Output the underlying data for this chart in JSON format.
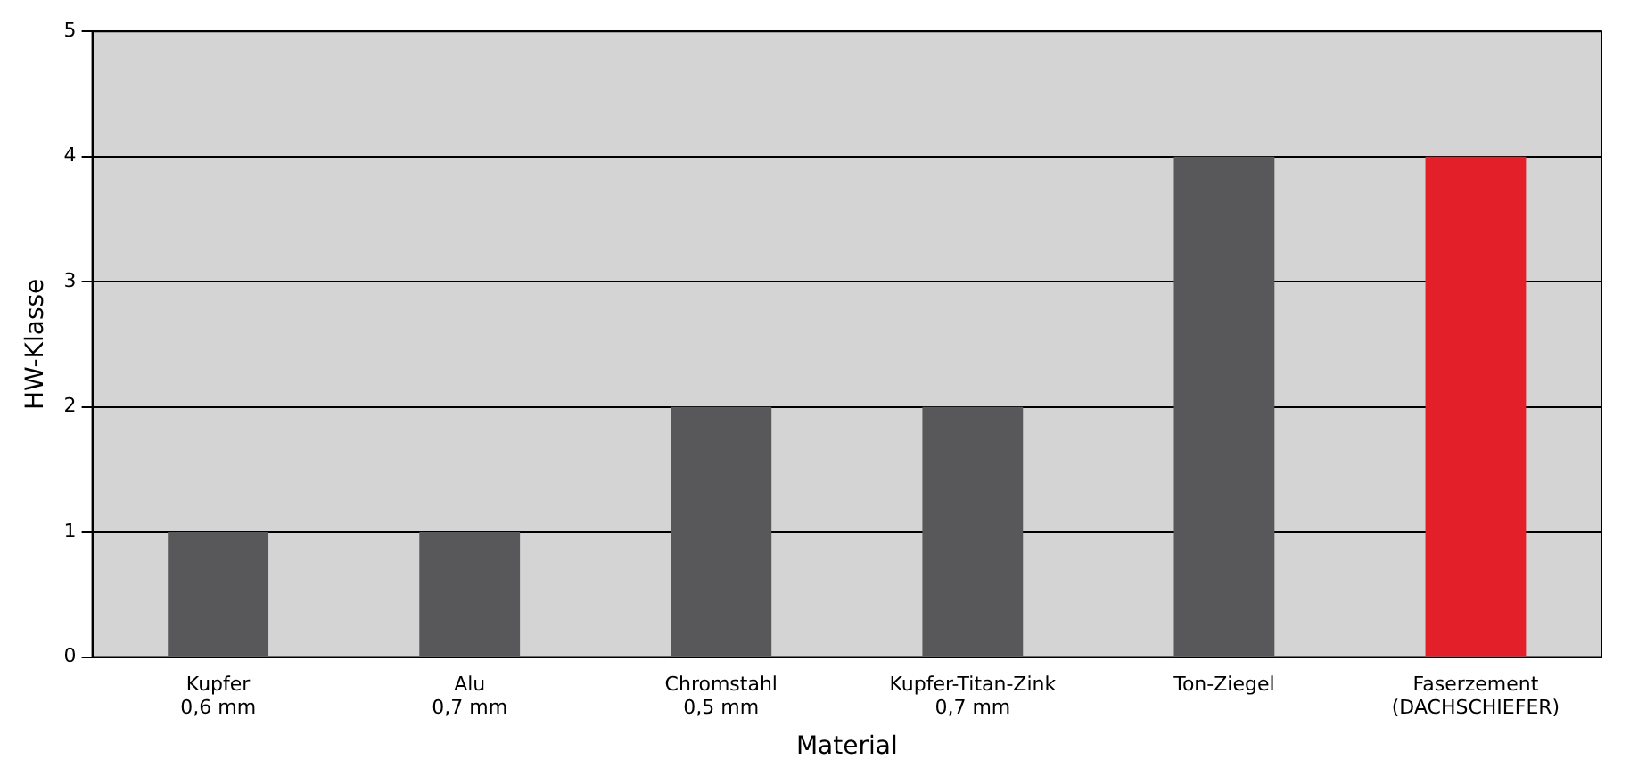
{
  "chart_data": {
    "type": "bar",
    "xlabel": "Material",
    "ylabel": "HW-Klasse",
    "categories": [
      "Kupfer\n0,6 mm",
      "Alu\n0,7 mm",
      "Chromstahl\n0,5 mm",
      "Kupfer-Titan-Zink\n0,7 mm",
      "Ton-Ziegel",
      "Faserzement\n(DACHSCHIEFER)"
    ],
    "values": [
      1,
      1,
      2,
      2,
      4,
      4
    ],
    "colors": [
      "#58585a",
      "#58585a",
      "#58585a",
      "#58585a",
      "#58585a",
      "#e3202a"
    ],
    "ylim": [
      0,
      5
    ],
    "yticks": [
      0,
      1,
      2,
      3,
      4,
      5
    ],
    "grid": "y",
    "legend": false
  }
}
